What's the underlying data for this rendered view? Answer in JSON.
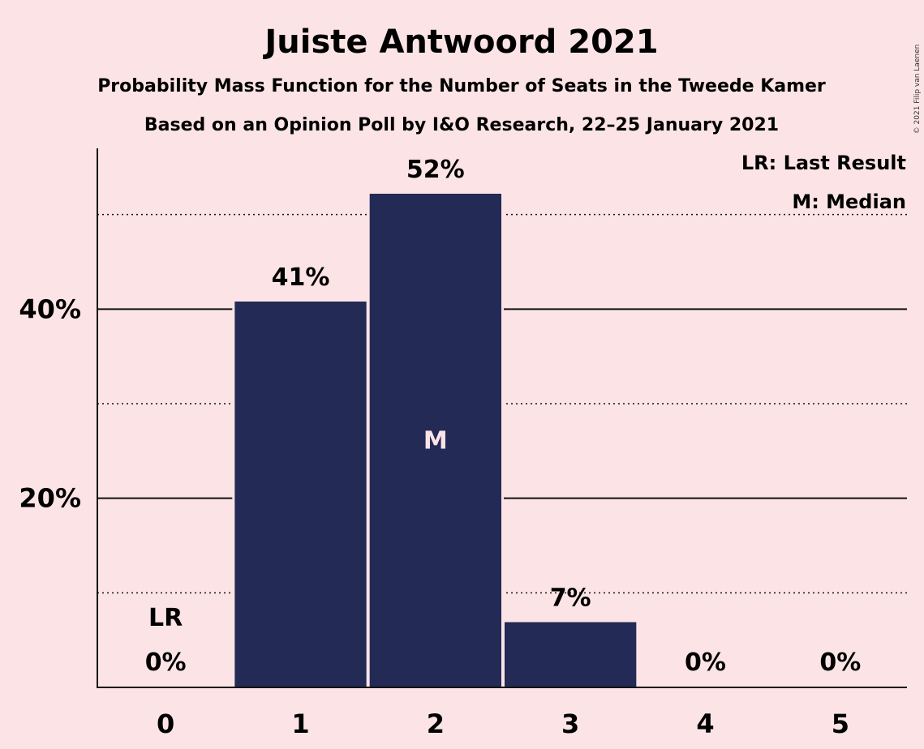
{
  "chart_data": {
    "type": "bar",
    "title": "Juiste Antwoord 2021",
    "subtitle": "Probability Mass Function for the Number of Seats in the Tweede Kamer",
    "subtitle2": "Based on an Opinion Poll by I&O Research, 22–25 January 2021",
    "categories": [
      "0",
      "1",
      "2",
      "3",
      "4",
      "5"
    ],
    "values": [
      0,
      40.8,
      52.2,
      6.9,
      0,
      0
    ],
    "value_labels": [
      "0%",
      "41%",
      "52%",
      "7%",
      "0%",
      "0%"
    ],
    "ylim": [
      0,
      57
    ],
    "y_ticks": [
      {
        "value": 20,
        "label": "20%"
      },
      {
        "value": 40,
        "label": "40%"
      }
    ],
    "y_minor_gridlines": [
      10,
      30,
      50
    ],
    "last_result_index": 0,
    "last_result_label": "LR",
    "median_index": 2,
    "median_label": "M",
    "legend": [
      "LR: Last Result",
      "M: Median"
    ],
    "legend_position": "top-right",
    "bar_color": "#222a55",
    "median_text_color": "#fce4e6",
    "copyright": "© 2021 Filip van Laenen"
  }
}
